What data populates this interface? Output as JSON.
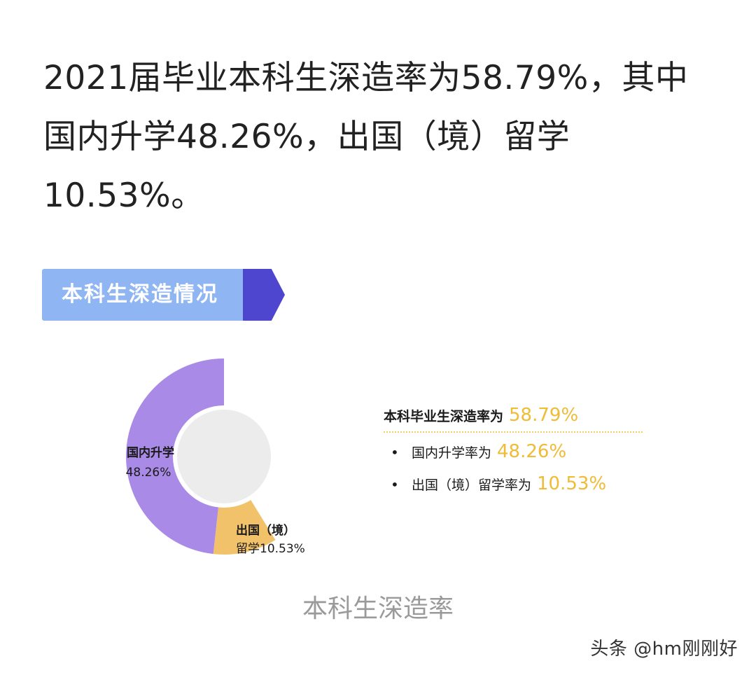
{
  "headline": "2021届毕业本科生深造率为58.79%，其中国内升学48.26%，出国（境）留学10.53%。",
  "section_banner": {
    "label": "本科生深造情况",
    "colors": {
      "light": "#8fb6f2",
      "dark": "#4f46cf"
    }
  },
  "chart_data": {
    "type": "pie",
    "variant": "donut",
    "slices": [
      {
        "label_line1": "国内升学",
        "label_line2": "48.26%",
        "value": 48.26,
        "color": "#a98ae6"
      },
      {
        "label_line1": "出国（境）",
        "label_line2": "留学10.53%",
        "value": 10.53,
        "color": "#f2c26b"
      }
    ],
    "center_color": "#ececec"
  },
  "summary": {
    "main": {
      "text": "本科毕业生深造率为",
      "value": "58.79%"
    },
    "items": [
      {
        "bullet": "•",
        "text": "国内升学率为",
        "value": "48.26%"
      },
      {
        "bullet": "•",
        "text": "出国（境）留学率为",
        "value": "10.53%"
      }
    ],
    "value_color": "#f0bb35"
  },
  "caption": "本科生深造率",
  "watermark": "头条 @hm刚刚好"
}
